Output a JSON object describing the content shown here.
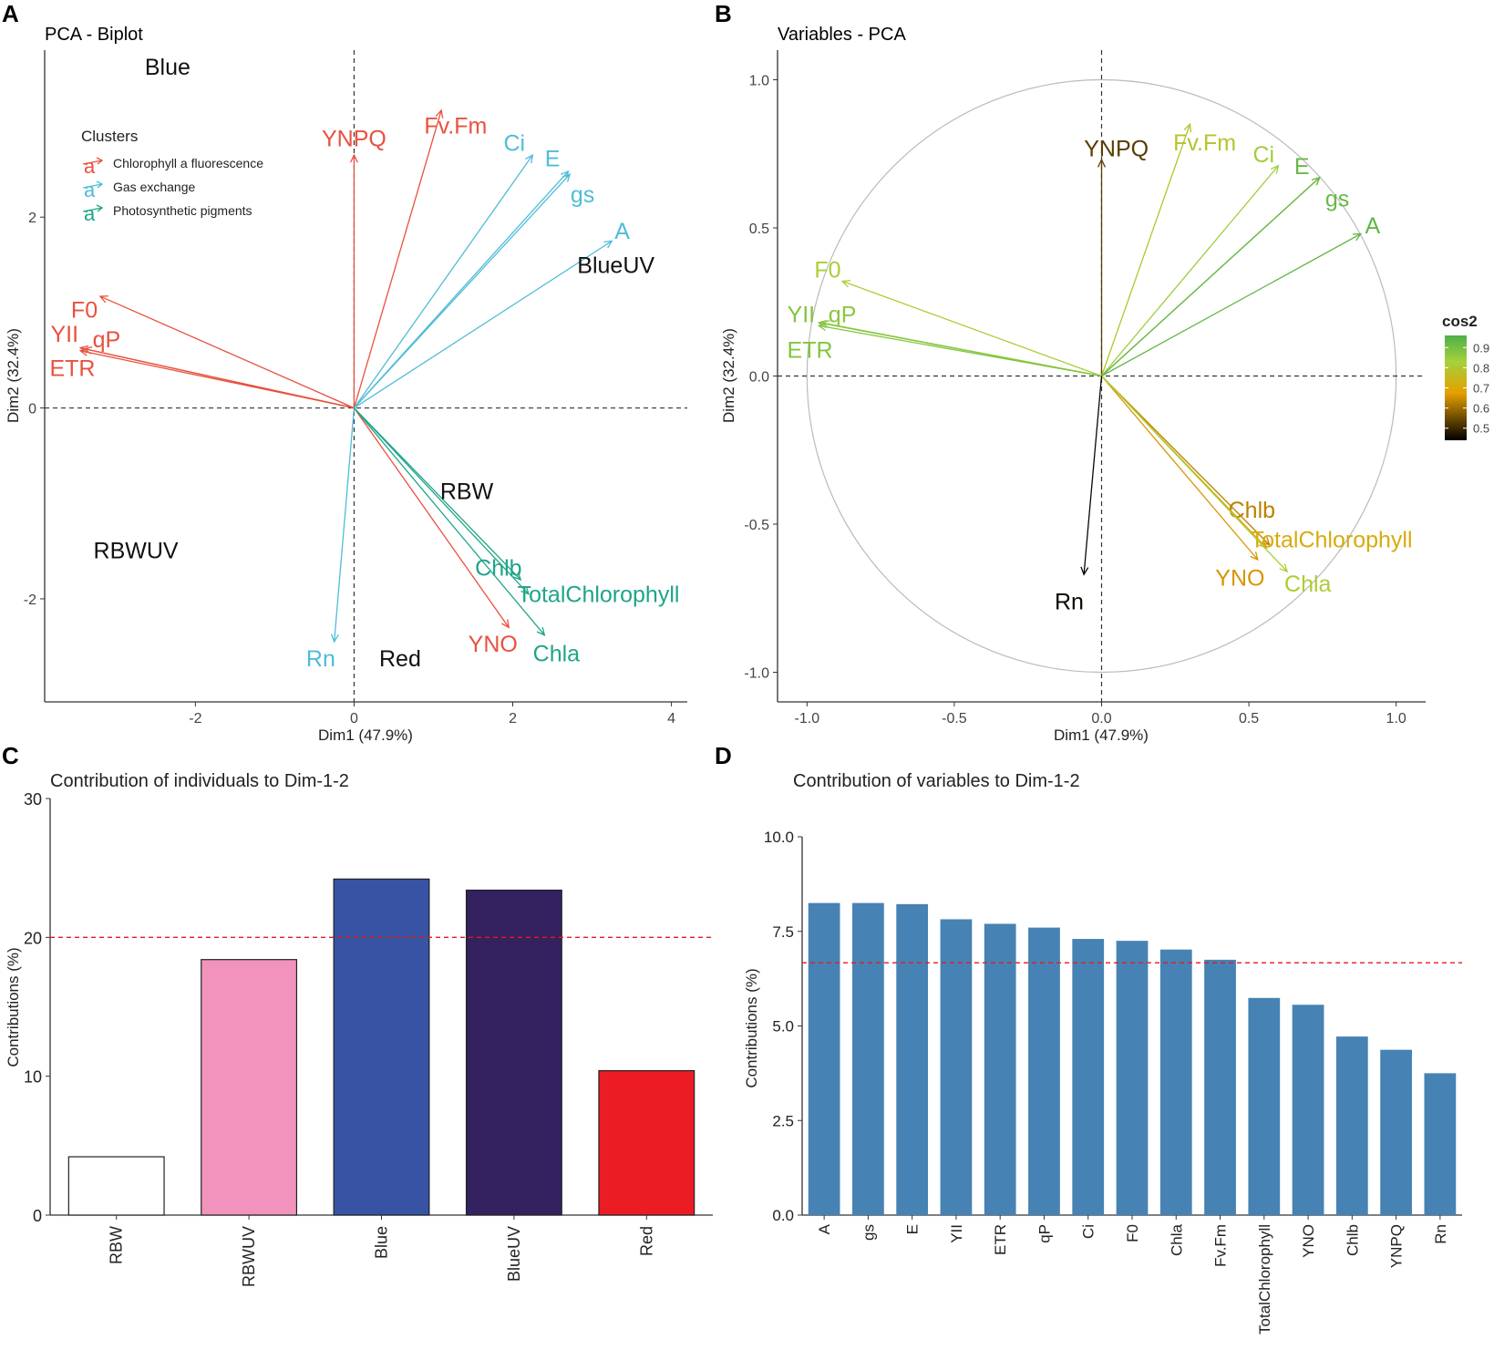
{
  "figure": {
    "panel_labels": [
      "A",
      "B",
      "C",
      "D"
    ]
  },
  "chart_data": [
    {
      "panel": "A",
      "type": "scatter",
      "subtype": "biplot",
      "title": "PCA - Biplot",
      "xlabel": "Dim1 (47.9%)",
      "ylabel": "Dim2 (32.4%)",
      "xlim": [
        -3.9,
        4.2
      ],
      "ylim": [
        -3.08,
        3.75
      ],
      "xticks": [
        -2,
        0,
        2,
        4
      ],
      "yticks": [
        -2,
        0,
        2
      ],
      "xtick_labels": [
        "-2",
        "0",
        "2",
        "4"
      ],
      "ytick_labels": [
        "-2",
        "0",
        "2"
      ],
      "legend": {
        "title": "Clusters",
        "position": "top-left",
        "symbol": "a",
        "entries": [
          "Chlorophyll a fluorescence",
          "Gas exchange",
          "Photosynthetic pigments"
        ]
      },
      "cluster_colors": [
        "#E8513F",
        "#4FBCD8",
        "#1FA58A"
      ],
      "vectors": [
        {
          "name": "YNPQ",
          "cluster": 0,
          "x": 0.0,
          "y": 2.65,
          "lx": 0.0,
          "ly": 2.83
        },
        {
          "name": "Fv.Fm",
          "cluster": 0,
          "x": 1.1,
          "y": 3.12,
          "lx": 1.28,
          "ly": 2.96
        },
        {
          "name": "F0",
          "cluster": 0,
          "x": -3.2,
          "y": 1.17,
          "lx": -3.4,
          "ly": 1.03
        },
        {
          "name": "YII",
          "cluster": 0,
          "x": -3.45,
          "y": 0.63,
          "lx": -3.65,
          "ly": 0.78
        },
        {
          "name": "qP",
          "cluster": 0,
          "x": -3.4,
          "y": 0.62,
          "lx": -3.12,
          "ly": 0.72
        },
        {
          "name": "ETR",
          "cluster": 0,
          "x": -3.45,
          "y": 0.6,
          "lx": -3.55,
          "ly": 0.42
        },
        {
          "name": "YNO",
          "cluster": 0,
          "x": 1.95,
          "y": -2.3,
          "lx": 1.75,
          "ly": -2.47
        },
        {
          "name": "Ci",
          "cluster": 1,
          "x": 2.25,
          "y": 2.65,
          "lx": 2.02,
          "ly": 2.78
        },
        {
          "name": "E",
          "cluster": 1,
          "x": 2.7,
          "y": 2.48,
          "lx": 2.5,
          "ly": 2.62
        },
        {
          "name": "gs",
          "cluster": 1,
          "x": 2.72,
          "y": 2.45,
          "lx": 2.88,
          "ly": 2.24
        },
        {
          "name": "A",
          "cluster": 1,
          "x": 3.25,
          "y": 1.75,
          "lx": 3.38,
          "ly": 1.86
        },
        {
          "name": "Rn",
          "cluster": 1,
          "x": -0.25,
          "y": -2.45,
          "lx": -0.42,
          "ly": -2.62
        },
        {
          "name": "Chlb",
          "cluster": 2,
          "x": 2.1,
          "y": -1.8,
          "lx": 1.82,
          "ly": -1.67
        },
        {
          "name": "TotalChlorophyll",
          "cluster": 2,
          "x": 2.2,
          "y": -1.95,
          "lx": 3.08,
          "ly": -1.95
        },
        {
          "name": "Chla",
          "cluster": 2,
          "x": 2.4,
          "y": -2.38,
          "lx": 2.55,
          "ly": -2.57
        }
      ],
      "individuals": [
        {
          "name": "Blue",
          "x": -2.35,
          "y": 3.58
        },
        {
          "name": "BlueUV",
          "x": 3.3,
          "y": 1.5
        },
        {
          "name": "RBW",
          "x": 1.42,
          "y": -0.87
        },
        {
          "name": "RBWUV",
          "x": -2.75,
          "y": -1.49
        },
        {
          "name": "Red",
          "x": 0.58,
          "y": -2.62
        }
      ]
    },
    {
      "panel": "B",
      "type": "scatter",
      "subtype": "correlation-circle",
      "title": "Variables - PCA",
      "xlabel": "Dim1 (47.9%)",
      "ylabel": "Dim2 (32.4%)",
      "xlim": [
        -1.1,
        1.1
      ],
      "ylim": [
        -1.1,
        1.1
      ],
      "xticks": [
        -1.0,
        -0.5,
        0.0,
        0.5,
        1.0
      ],
      "yticks": [
        -1.0,
        -0.5,
        0.0,
        0.5,
        1.0
      ],
      "xtick_labels": [
        "-1.0",
        "-0.5",
        "0.0",
        "0.5",
        "1.0"
      ],
      "ytick_labels": [
        "-1.0",
        "-0.5",
        "0.0",
        "0.5",
        "1.0"
      ],
      "legend": {
        "title": "cos2",
        "position": "right",
        "ticks": [
          "0.9",
          "0.8",
          "0.7",
          "0.6",
          "0.5"
        ],
        "range": [
          0.44,
          0.96
        ],
        "gradient_colors": [
          "#000000",
          "#E69F00",
          "#A6D13A",
          "#4DAF4A"
        ]
      },
      "vectors": [
        {
          "name": "YNPQ",
          "x": 0.0,
          "y": 0.73,
          "cos2": 0.53,
          "lx": 0.05,
          "ly": 0.77
        },
        {
          "name": "Fv.Fm",
          "x": 0.3,
          "y": 0.85,
          "cos2": 0.79,
          "lx": 0.35,
          "ly": 0.79
        },
        {
          "name": "Ci",
          "x": 0.6,
          "y": 0.71,
          "cos2": 0.84,
          "lx": 0.55,
          "ly": 0.75
        },
        {
          "name": "E",
          "x": 0.74,
          "y": 0.67,
          "cos2": 0.92,
          "lx": 0.68,
          "ly": 0.71
        },
        {
          "name": "gs",
          "x": 0.74,
          "y": 0.67,
          "cos2": 0.92,
          "lx": 0.8,
          "ly": 0.6
        },
        {
          "name": "A",
          "x": 0.88,
          "y": 0.48,
          "cos2": 0.93,
          "lx": 0.92,
          "ly": 0.51
        },
        {
          "name": "F0",
          "x": -0.88,
          "y": 0.32,
          "cos2": 0.82,
          "lx": -0.93,
          "ly": 0.36
        },
        {
          "name": "YII",
          "x": -0.96,
          "y": 0.18,
          "cos2": 0.88,
          "lx": -1.02,
          "ly": 0.21
        },
        {
          "name": "qP",
          "x": -0.95,
          "y": 0.18,
          "cos2": 0.87,
          "lx": -0.88,
          "ly": 0.21
        },
        {
          "name": "ETR",
          "x": -0.96,
          "y": 0.17,
          "cos2": 0.88,
          "lx": -0.99,
          "ly": 0.09
        },
        {
          "name": "Chlb",
          "x": 0.57,
          "y": -0.57,
          "cos2": 0.63,
          "lx": 0.51,
          "ly": -0.45
        },
        {
          "name": "TotalChlorophyll",
          "x": 0.56,
          "y": -0.58,
          "cos2": 0.71,
          "lx": 0.78,
          "ly": -0.55
        },
        {
          "name": "YNO",
          "x": 0.53,
          "y": -0.62,
          "cos2": 0.66,
          "lx": 0.47,
          "ly": -0.68
        },
        {
          "name": "Chla",
          "x": 0.63,
          "y": -0.66,
          "cos2": 0.82,
          "lx": 0.7,
          "ly": -0.7
        },
        {
          "name": "Rn",
          "x": -0.06,
          "y": -0.67,
          "cos2": 0.45,
          "lx": -0.11,
          "ly": -0.76
        }
      ]
    },
    {
      "panel": "C",
      "type": "bar",
      "title": "Contribution of individuals to Dim-1-2",
      "xlabel": "",
      "ylabel": "Contributions (%)",
      "categories": [
        "RBW",
        "RBWUV",
        "Blue",
        "BlueUV",
        "Red"
      ],
      "values": [
        4.2,
        18.4,
        24.2,
        23.4,
        10.4
      ],
      "bar_colors": [
        "#FFFFFF",
        "#F193BC",
        "#3853A4",
        "#342160",
        "#EC1C24"
      ],
      "ylim": [
        0,
        30
      ],
      "yticks": [
        0,
        10,
        20,
        30
      ],
      "ytick_labels": [
        "0",
        "10",
        "20",
        "30"
      ],
      "reference_line": 20
    },
    {
      "panel": "D",
      "type": "bar",
      "title": "Contribution of variables to Dim-1-2",
      "xlabel": "",
      "ylabel": "Contributions (%)",
      "categories": [
        "A",
        "gs",
        "E",
        "YII",
        "ETR",
        "qP",
        "Ci",
        "F0",
        "Chla",
        "Fv.Fm",
        "TotalChlorophyll",
        "YNO",
        "Chlb",
        "YNPQ",
        "Rn"
      ],
      "values": [
        8.25,
        8.25,
        8.22,
        7.82,
        7.7,
        7.6,
        7.3,
        7.25,
        7.02,
        6.75,
        5.74,
        5.56,
        4.72,
        4.37,
        3.75
      ],
      "bar_color": "#4682B4",
      "ylim": [
        0,
        10
      ],
      "yticks": [
        0,
        2.5,
        5,
        7.5,
        10
      ],
      "ytick_labels": [
        "0.0",
        "2.5",
        "5.0",
        "7.5",
        "10.0"
      ],
      "reference_line": 6.67
    }
  ]
}
